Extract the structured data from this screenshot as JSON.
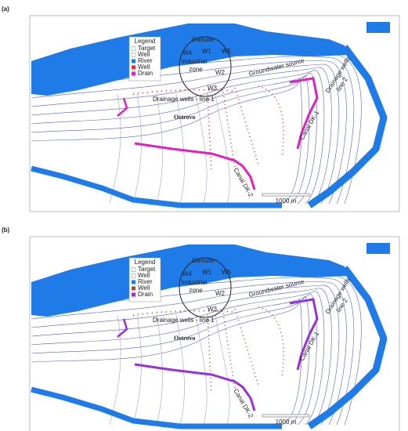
{
  "panels": [
    {
      "label": "(a)",
      "legend": {
        "title": "Legend",
        "items": [
          "Target",
          "Well",
          "River",
          "Well",
          "Drain"
        ]
      },
      "labels": {
        "river": "Danube",
        "wells": [
          "W4",
          "W1",
          "W5",
          "W2",
          "W3"
        ],
        "industrial_zone": [
          "Industrial",
          "zone"
        ],
        "groundwater_source": "Groundwater source",
        "drainage_line_1": "Drainage wells - line 1",
        "drainage_line_2": [
          "Drainage wells",
          "line 2"
        ],
        "town": "Ostrovo",
        "canal_1": "Canal DK-1",
        "canal_2": "Canal DK-2",
        "scale": "1000 m"
      }
    },
    {
      "label": "(b)",
      "legend": {
        "title": "Legend",
        "items": [
          "Target",
          "Well",
          "River",
          "Well",
          "Drain"
        ]
      },
      "labels": {
        "river": "Danube",
        "wells": [
          "W4",
          "W1",
          "W5",
          "W2",
          "W3"
        ],
        "industrial_zone": [
          "Industrial",
          "zone"
        ],
        "groundwater_source": "Groundwater source",
        "drainage_line_1": "Drainage wells - line 1",
        "drainage_line_2": [
          "Drainage wells",
          "line 2"
        ],
        "town": "Ostrovo",
        "canal_1": "Canal DK-1",
        "canal_2": "Canal DK-2",
        "scale": "1000 m"
      }
    }
  ]
}
